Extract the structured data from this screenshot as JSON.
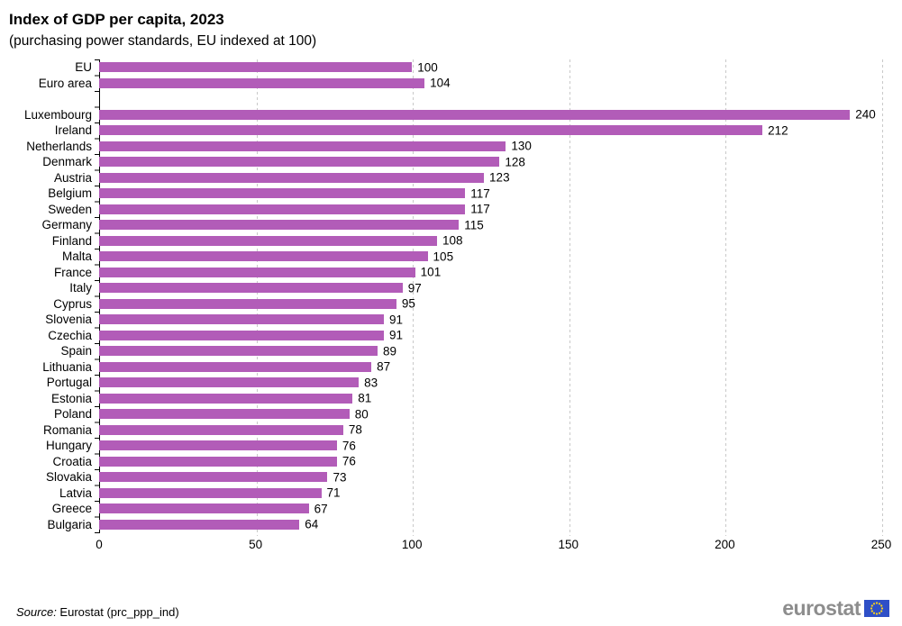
{
  "title": "Index of GDP per capita, 2023",
  "subtitle": "(purchasing power standards, EU indexed at 100)",
  "footer": {
    "source_prefix": "Source:",
    "source_text": " Eurostat (prc_ppp_ind)",
    "logo_text": "eurostat"
  },
  "colors": {
    "bar": "#b25cb8",
    "grid": "#c9c9c9",
    "axis": "#000000",
    "logo_gray": "#8d8d8d",
    "flag_blue": "#2e4fc7",
    "star_yellow": "#ffd617"
  },
  "chart_data": {
    "type": "bar",
    "orientation": "horizontal",
    "title": "Index of GDP per capita, 2023",
    "subtitle": "(purchasing power standards, EU indexed at 100)",
    "xlabel": "",
    "ylabel": "",
    "xlim": [
      0,
      250
    ],
    "x_ticks": [
      0,
      50,
      100,
      150,
      200,
      250
    ],
    "grid": "vertical dashed",
    "legend": "none",
    "gap_after_index": 1,
    "categories": [
      "EU",
      "Euro area",
      "Luxembourg",
      "Ireland",
      "Netherlands",
      "Denmark",
      "Austria",
      "Belgium",
      "Sweden",
      "Germany",
      "Finland",
      "Malta",
      "France",
      "Italy",
      "Cyprus",
      "Slovenia",
      "Czechia",
      "Spain",
      "Lithuania",
      "Portugal",
      "Estonia",
      "Poland",
      "Romania",
      "Hungary",
      "Croatia",
      "Slovakia",
      "Latvia",
      "Greece",
      "Bulgaria"
    ],
    "values": [
      100,
      104,
      240,
      212,
      130,
      128,
      123,
      117,
      117,
      115,
      108,
      105,
      101,
      97,
      95,
      91,
      91,
      89,
      87,
      83,
      81,
      80,
      78,
      76,
      76,
      73,
      71,
      67,
      64
    ]
  }
}
